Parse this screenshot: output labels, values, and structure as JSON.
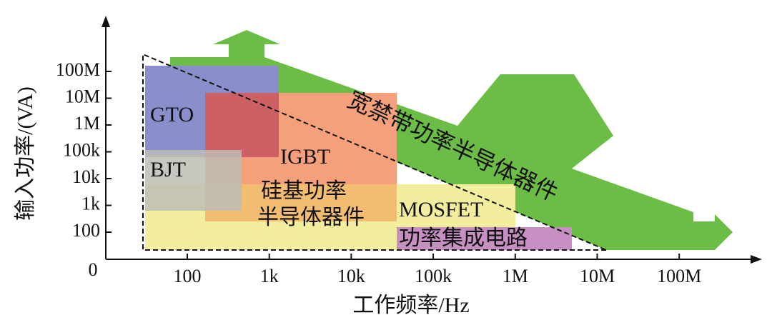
{
  "axes": {
    "y_label": "输入功率/(VA)",
    "x_label": "工作频率/Hz",
    "origin": "0",
    "y_ticks": [
      "100M",
      "10M",
      "1M",
      "100k",
      "10k",
      "1k",
      "100"
    ],
    "x_ticks": [
      "100",
      "1k",
      "10k",
      "100k",
      "1M",
      "10M",
      "100M"
    ]
  },
  "regions": {
    "gto": "GTO",
    "bjt": "BJT",
    "igbt": "IGBT",
    "silicon": [
      "硅基功率",
      "半导体器件"
    ],
    "mosfet": "MOSFET",
    "pic": "功率集成电路",
    "wide_bandgap": "宽禁带功率半导体器件"
  }
}
